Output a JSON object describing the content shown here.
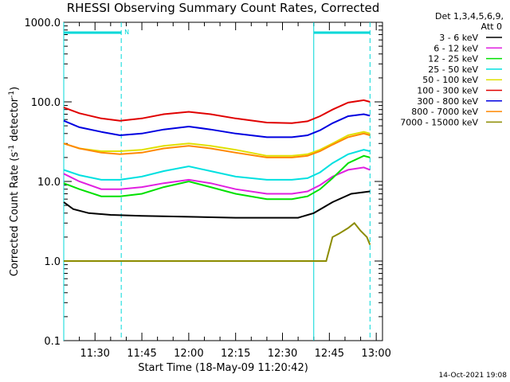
{
  "chart_data": {
    "type": "line",
    "title": "RHESSI Observing Summary Count Rates, Corrected",
    "xlabel": "Start Time (18-May-09 11:20:42)",
    "ylabel_main": "Corrected Count Rate (s",
    "ylabel_mid": " detector",
    "ylabel_end": ")",
    "ylabel_exp": "-1",
    "y_scale": "log",
    "ylim": [
      0.1,
      1000
    ],
    "y_ticks": [
      {
        "v": 1000,
        "label": "1000.0"
      },
      {
        "v": 100,
        "label": "100.0"
      },
      {
        "v": 10,
        "label": "10.0"
      },
      {
        "v": 1,
        "label": "1.0"
      },
      {
        "v": 0.1,
        "label": "0.1"
      }
    ],
    "xlim_min": [
      0,
      102
    ],
    "x_ticks": [
      {
        "m": 10,
        "label": "11:30"
      },
      {
        "m": 25,
        "label": "11:45"
      },
      {
        "m": 40,
        "label": "12:00"
      },
      {
        "m": 55,
        "label": "12:15"
      },
      {
        "m": 70,
        "label": "12:30"
      },
      {
        "m": 85,
        "label": "12:45"
      },
      {
        "m": 100,
        "label": "13:00"
      }
    ],
    "legend_header": [
      "Det 1,3,4,5,6,9,",
      "Att 0"
    ],
    "legend_placement": "right",
    "timestamp": "14-Oct-2021 19:08",
    "night_flag_label": "N",
    "night_periods": [
      [
        0,
        18.4
      ],
      [
        80,
        98
      ]
    ],
    "series": [
      {
        "name": "3 - 6 keV",
        "color": "#000000",
        "points": [
          [
            0,
            5.5
          ],
          [
            3,
            4.5
          ],
          [
            8,
            4.0
          ],
          [
            15,
            3.8
          ],
          [
            25,
            3.7
          ],
          [
            40,
            3.6
          ],
          [
            55,
            3.5
          ],
          [
            65,
            3.5
          ],
          [
            75,
            3.5
          ],
          [
            80,
            4.0
          ],
          [
            86,
            5.5
          ],
          [
            92,
            7.0
          ],
          [
            98,
            7.5
          ]
        ]
      },
      {
        "name": "6 - 12 keV",
        "color": "#e020e0",
        "points": [
          [
            0,
            12.5
          ],
          [
            5,
            10
          ],
          [
            12,
            8
          ],
          [
            18,
            8.0
          ],
          [
            25,
            8.5
          ],
          [
            32,
            9.5
          ],
          [
            40,
            10.5
          ],
          [
            47,
            9.5
          ],
          [
            55,
            8.0
          ],
          [
            65,
            7.0
          ],
          [
            73,
            7.0
          ],
          [
            78,
            7.5
          ],
          [
            82,
            9
          ],
          [
            86,
            11.5
          ],
          [
            91,
            14
          ],
          [
            96,
            15
          ],
          [
            98,
            14
          ]
        ]
      },
      {
        "name": "12 - 25 keV",
        "color": "#00e000",
        "points": [
          [
            0,
            9.5
          ],
          [
            5,
            8
          ],
          [
            12,
            6.5
          ],
          [
            18,
            6.5
          ],
          [
            25,
            7
          ],
          [
            32,
            8.5
          ],
          [
            40,
            10
          ],
          [
            47,
            8.5
          ],
          [
            55,
            7
          ],
          [
            65,
            6
          ],
          [
            73,
            6
          ],
          [
            78,
            6.5
          ],
          [
            82,
            8
          ],
          [
            86,
            11
          ],
          [
            91,
            17
          ],
          [
            96,
            21
          ],
          [
            98,
            20
          ]
        ]
      },
      {
        "name": "25 - 50 keV",
        "color": "#00e0e0",
        "points": [
          [
            0,
            14
          ],
          [
            5,
            12
          ],
          [
            12,
            10.5
          ],
          [
            18,
            10.5
          ],
          [
            25,
            11.5
          ],
          [
            32,
            13.5
          ],
          [
            40,
            15.5
          ],
          [
            47,
            13.5
          ],
          [
            55,
            11.5
          ],
          [
            65,
            10.5
          ],
          [
            73,
            10.5
          ],
          [
            78,
            11
          ],
          [
            82,
            13
          ],
          [
            86,
            17
          ],
          [
            91,
            22
          ],
          [
            96,
            25
          ],
          [
            98,
            24
          ]
        ]
      },
      {
        "name": "50 - 100 keV",
        "color": "#e0e000",
        "points": [
          [
            0,
            30
          ],
          [
            5,
            26
          ],
          [
            12,
            24
          ],
          [
            18,
            24
          ],
          [
            25,
            25
          ],
          [
            32,
            28
          ],
          [
            40,
            30
          ],
          [
            47,
            28
          ],
          [
            55,
            25
          ],
          [
            65,
            21
          ],
          [
            73,
            21
          ],
          [
            78,
            22
          ],
          [
            82,
            25
          ],
          [
            86,
            30
          ],
          [
            91,
            38
          ],
          [
            96,
            42
          ],
          [
            98,
            40
          ]
        ]
      },
      {
        "name": "100 - 300 keV",
        "color": "#e00000",
        "points": [
          [
            0,
            85
          ],
          [
            5,
            72
          ],
          [
            12,
            62
          ],
          [
            18,
            58
          ],
          [
            25,
            62
          ],
          [
            32,
            70
          ],
          [
            40,
            75
          ],
          [
            47,
            70
          ],
          [
            55,
            62
          ],
          [
            65,
            55
          ],
          [
            73,
            54
          ],
          [
            78,
            57
          ],
          [
            82,
            66
          ],
          [
            86,
            80
          ],
          [
            91,
            98
          ],
          [
            96,
            105
          ],
          [
            98,
            100
          ]
        ]
      },
      {
        "name": "300 - 800 keV",
        "color": "#0000e0",
        "points": [
          [
            0,
            58
          ],
          [
            5,
            48
          ],
          [
            12,
            42
          ],
          [
            18,
            38
          ],
          [
            25,
            40
          ],
          [
            32,
            45
          ],
          [
            40,
            49
          ],
          [
            47,
            45
          ],
          [
            55,
            40
          ],
          [
            65,
            36
          ],
          [
            73,
            36
          ],
          [
            78,
            38
          ],
          [
            82,
            44
          ],
          [
            86,
            54
          ],
          [
            91,
            66
          ],
          [
            96,
            70
          ],
          [
            98,
            67
          ]
        ]
      },
      {
        "name": "800 - 7000 keV",
        "color": "#ff8800",
        "points": [
          [
            0,
            30
          ],
          [
            5,
            26
          ],
          [
            12,
            23
          ],
          [
            18,
            22
          ],
          [
            25,
            23
          ],
          [
            32,
            26
          ],
          [
            40,
            28
          ],
          [
            47,
            26
          ],
          [
            55,
            23
          ],
          [
            65,
            20
          ],
          [
            73,
            20
          ],
          [
            78,
            21
          ],
          [
            82,
            24
          ],
          [
            86,
            29
          ],
          [
            91,
            36
          ],
          [
            96,
            40
          ],
          [
            98,
            38
          ]
        ]
      },
      {
        "name": "7000 - 15000 keV",
        "color": "#8c8c00",
        "points": [
          [
            0,
            1.0
          ],
          [
            6,
            1.0
          ],
          [
            31,
            1.0
          ],
          [
            44,
            1.0
          ],
          [
            80,
            1.0
          ],
          [
            84,
            1.0
          ],
          [
            86,
            2.0
          ],
          [
            88,
            2.2
          ],
          [
            91,
            2.6
          ],
          [
            93,
            3.0
          ],
          [
            95,
            2.4
          ],
          [
            97,
            2.0
          ],
          [
            98,
            1.6
          ]
        ]
      }
    ]
  }
}
